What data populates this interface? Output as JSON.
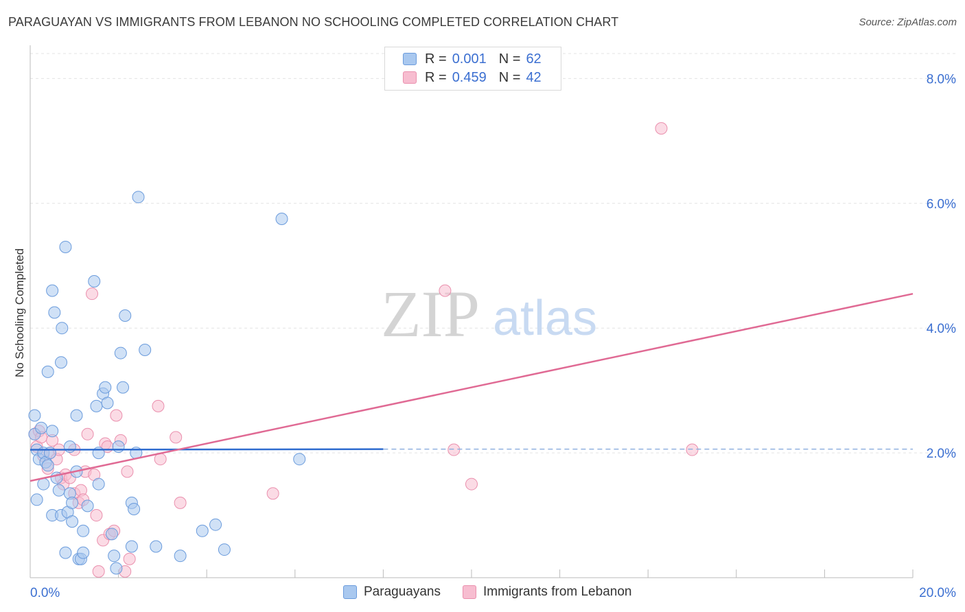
{
  "title": "PARAGUAYAN VS IMMIGRANTS FROM LEBANON NO SCHOOLING COMPLETED CORRELATION CHART",
  "source": "Source: ZipAtlas.com",
  "watermark": {
    "zip": "ZIP",
    "atlas": "atlas"
  },
  "legend": {
    "rows": [
      {
        "label": "R =",
        "r": "0.001",
        "n_label": "N =",
        "n": "62"
      },
      {
        "label": "R =",
        "r": "0.459",
        "n_label": "N =",
        "n": "42"
      }
    ]
  },
  "bottom_legend": [
    "Paraguayans",
    "Immigrants from Lebanon"
  ],
  "colors": {
    "blue_fill": "#a9c8ef",
    "blue_stroke": "#6a9bdc",
    "blue_line": "#2f6ccf",
    "pink_fill": "#f7bdd0",
    "pink_stroke": "#ea8fad",
    "pink_line": "#e06a94",
    "tick_label": "#3b6fd1",
    "grid": "#e3e3e3"
  },
  "chart_data": {
    "type": "scatter",
    "title": "PARAGUAYAN VS IMMIGRANTS FROM LEBANON NO SCHOOLING COMPLETED CORRELATION CHART",
    "xlabel": "",
    "ylabel": "No Schooling Completed",
    "xlim": [
      0,
      20
    ],
    "ylim": [
      0,
      8.4
    ],
    "x_tick_labels": [
      "0.0%",
      "20.0%"
    ],
    "y_ticks": [
      2,
      4,
      6,
      8
    ],
    "y_tick_labels": [
      "2.0%",
      "4.0%",
      "6.0%",
      "8.0%"
    ],
    "series": [
      {
        "name": "Paraguayans",
        "R": 0.001,
        "N": 62,
        "trend": {
          "x": [
            0,
            8
          ],
          "y": [
            2.05,
            2.06
          ],
          "dashed_to_x": 20
        },
        "points": [
          [
            0.1,
            2.6
          ],
          [
            0.1,
            2.3
          ],
          [
            0.15,
            2.05
          ],
          [
            0.15,
            1.25
          ],
          [
            0.2,
            1.9
          ],
          [
            0.25,
            2.4
          ],
          [
            0.3,
            1.5
          ],
          [
            0.3,
            2.0
          ],
          [
            0.35,
            1.85
          ],
          [
            0.4,
            1.8
          ],
          [
            0.4,
            3.3
          ],
          [
            0.45,
            2.0
          ],
          [
            0.5,
            2.35
          ],
          [
            0.5,
            1.0
          ],
          [
            0.5,
            4.6
          ],
          [
            0.55,
            4.25
          ],
          [
            0.6,
            1.6
          ],
          [
            0.65,
            1.4
          ],
          [
            0.7,
            1.0
          ],
          [
            0.7,
            3.45
          ],
          [
            0.72,
            4.0
          ],
          [
            0.8,
            0.4
          ],
          [
            0.8,
            5.3
          ],
          [
            0.85,
            1.05
          ],
          [
            0.9,
            1.35
          ],
          [
            0.9,
            2.1
          ],
          [
            0.95,
            1.2
          ],
          [
            0.95,
            0.9
          ],
          [
            1.05,
            1.7
          ],
          [
            1.05,
            2.6
          ],
          [
            1.1,
            0.3
          ],
          [
            1.15,
            0.3
          ],
          [
            1.2,
            0.75
          ],
          [
            1.2,
            0.4
          ],
          [
            1.3,
            1.15
          ],
          [
            1.45,
            4.75
          ],
          [
            1.5,
            2.75
          ],
          [
            1.55,
            1.5
          ],
          [
            1.65,
            2.95
          ],
          [
            1.7,
            3.05
          ],
          [
            1.75,
            2.8
          ],
          [
            1.85,
            0.7
          ],
          [
            1.9,
            0.35
          ],
          [
            1.95,
            0.15
          ],
          [
            2.0,
            2.1
          ],
          [
            2.05,
            3.6
          ],
          [
            2.1,
            3.05
          ],
          [
            2.15,
            4.2
          ],
          [
            2.3,
            0.5
          ],
          [
            2.3,
            1.2
          ],
          [
            2.35,
            1.1
          ],
          [
            2.4,
            2.0
          ],
          [
            2.45,
            6.1
          ],
          [
            2.6,
            3.65
          ],
          [
            2.85,
            0.5
          ],
          [
            3.4,
            0.35
          ],
          [
            3.9,
            0.75
          ],
          [
            4.2,
            0.85
          ],
          [
            4.4,
            0.45
          ],
          [
            5.7,
            5.75
          ],
          [
            6.1,
            1.9
          ],
          [
            1.55,
            2.0
          ]
        ]
      },
      {
        "name": "Immigrants from Lebanon",
        "R": 0.459,
        "N": 42,
        "trend": {
          "x": [
            0,
            20
          ],
          "y": [
            1.55,
            4.55
          ]
        },
        "points": [
          [
            0.1,
            2.3
          ],
          [
            0.15,
            2.1
          ],
          [
            0.2,
            2.35
          ],
          [
            0.25,
            2.25
          ],
          [
            0.3,
            1.95
          ],
          [
            0.4,
            1.75
          ],
          [
            0.45,
            2.0
          ],
          [
            0.5,
            2.2
          ],
          [
            0.6,
            1.9
          ],
          [
            0.65,
            2.05
          ],
          [
            0.7,
            1.6
          ],
          [
            0.75,
            1.5
          ],
          [
            0.8,
            1.65
          ],
          [
            0.9,
            1.6
          ],
          [
            1.0,
            1.35
          ],
          [
            1.0,
            2.05
          ],
          [
            1.1,
            1.2
          ],
          [
            1.15,
            1.4
          ],
          [
            1.2,
            1.25
          ],
          [
            1.25,
            1.7
          ],
          [
            1.3,
            2.3
          ],
          [
            1.4,
            4.55
          ],
          [
            1.45,
            1.65
          ],
          [
            1.5,
            1.0
          ],
          [
            1.55,
            0.1
          ],
          [
            1.65,
            0.6
          ],
          [
            1.7,
            2.15
          ],
          [
            1.75,
            2.1
          ],
          [
            1.8,
            0.7
          ],
          [
            1.9,
            0.75
          ],
          [
            1.95,
            2.6
          ],
          [
            2.05,
            2.2
          ],
          [
            2.15,
            0.1
          ],
          [
            2.2,
            1.7
          ],
          [
            2.25,
            0.3
          ],
          [
            2.9,
            2.75
          ],
          [
            2.95,
            1.9
          ],
          [
            3.3,
            2.25
          ],
          [
            3.4,
            1.2
          ],
          [
            5.5,
            1.35
          ],
          [
            9.6,
            2.05
          ],
          [
            10.0,
            1.5
          ]
        ],
        "extra_points": [
          [
            9.4,
            4.6
          ],
          [
            14.3,
            7.2
          ],
          [
            15.0,
            2.05
          ]
        ]
      }
    ]
  }
}
